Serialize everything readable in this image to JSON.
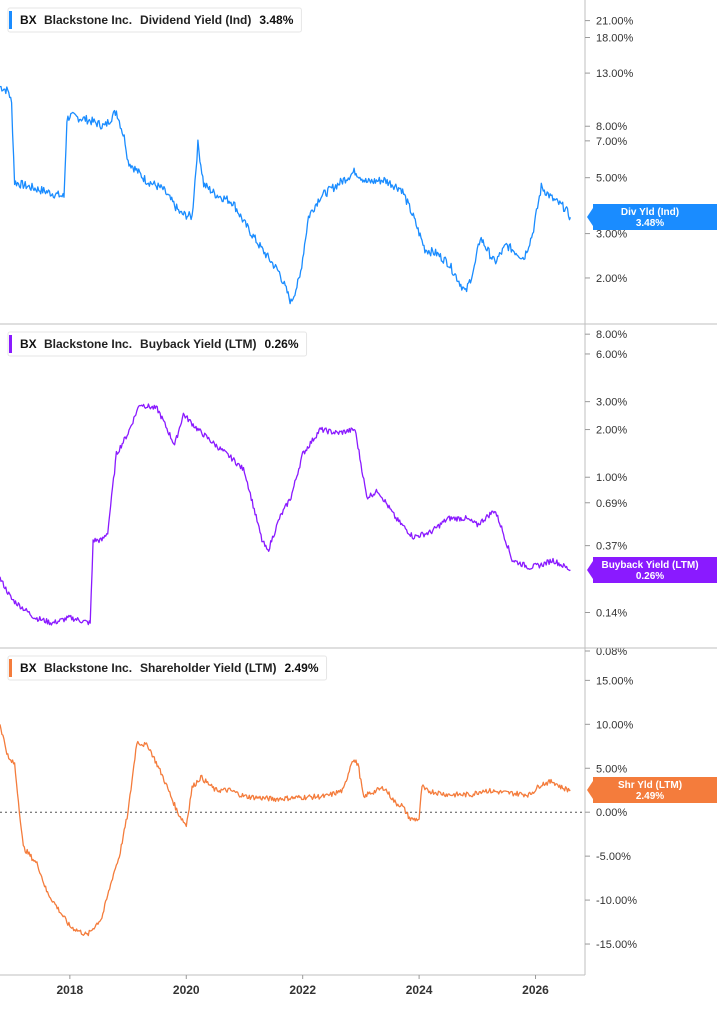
{
  "chart_data": [
    {
      "type": "line",
      "title": "",
      "xlabel": "",
      "ylabel": "",
      "scale": "log",
      "grid": false,
      "legend_placement": "top-left",
      "legend": {
        "ticker": "BX",
        "company": "Blackstone Inc.",
        "metric": "Dividend Yield (Ind)",
        "value": "3.48%"
      },
      "badge": {
        "line1": "Div Yld (Ind)",
        "line2": "3.48%"
      },
      "color": "#1a8cff",
      "x_ticks": [
        "2018",
        "2020",
        "2022",
        "2024",
        "2026"
      ],
      "y_ticks": [
        "21.00%",
        "18.00%",
        "13.00%",
        "8.00%",
        "7.00%",
        "5.00%",
        "3.00%",
        "2.00%"
      ],
      "ylim": [
        1.4,
        24
      ],
      "series": [
        {
          "x": [
            2016.8,
            2016.95,
            2017.0,
            2017.05,
            2017.3,
            2017.6,
            2017.9,
            2017.95,
            2018.0,
            2018.3,
            2018.6,
            2018.8,
            2018.95,
            2019.0,
            2019.3,
            2019.6,
            2019.9,
            2020.1,
            2020.2,
            2020.3,
            2020.5,
            2020.8,
            2021.0,
            2021.3,
            2021.6,
            2021.8,
            2021.95,
            2022.1,
            2022.3,
            2022.6,
            2022.9,
            2023.1,
            2023.4,
            2023.7,
            2023.9,
            2024.1,
            2024.3,
            2024.5,
            2024.8,
            2024.95,
            2025.05,
            2025.3,
            2025.5,
            2025.8,
            2025.95,
            2026.1,
            2026.3,
            2026.5,
            2026.6
          ],
          "y": [
            11.5,
            11.0,
            9.8,
            4.8,
            4.6,
            4.4,
            4.2,
            8.5,
            8.8,
            8.5,
            8.0,
            9.2,
            7.0,
            5.8,
            4.9,
            4.5,
            3.6,
            3.5,
            6.8,
            4.7,
            4.3,
            4.0,
            3.3,
            2.6,
            2.1,
            1.6,
            2.0,
            3.5,
            4.2,
            4.7,
            5.3,
            4.8,
            4.9,
            4.5,
            3.5,
            2.6,
            2.5,
            2.3,
            1.75,
            2.2,
            2.9,
            2.3,
            2.7,
            2.4,
            3.0,
            4.6,
            4.1,
            3.8,
            3.48
          ]
        }
      ]
    },
    {
      "type": "line",
      "title": "",
      "xlabel": "",
      "ylabel": "",
      "scale": "log",
      "grid": false,
      "legend_placement": "top-left",
      "legend": {
        "ticker": "BX",
        "company": "Blackstone Inc.",
        "metric": "Buyback Yield (LTM)",
        "value": "0.26%"
      },
      "badge": {
        "line1": "Buyback Yield (LTM)",
        "line2": "0.26%"
      },
      "color": "#8a1aff",
      "x_ticks": [
        "2018",
        "2020",
        "2022",
        "2024",
        "2026"
      ],
      "y_ticks": [
        "8.00%",
        "6.00%",
        "3.00%",
        "2.00%",
        "1.00%",
        "0.69%",
        "0.37%",
        "0.14%",
        "0.08%"
      ],
      "ylim": [
        0.08,
        8.5
      ],
      "series": [
        {
          "x": [
            2016.8,
            2017.0,
            2017.4,
            2017.7,
            2018.0,
            2018.35,
            2018.4,
            2018.55,
            2018.65,
            2018.8,
            2019.0,
            2019.2,
            2019.5,
            2019.55,
            2019.8,
            2019.95,
            2020.2,
            2020.5,
            2020.8,
            2021.0,
            2021.3,
            2021.4,
            2021.6,
            2021.8,
            2022.0,
            2022.3,
            2022.6,
            2022.9,
            2023.1,
            2023.3,
            2023.6,
            2023.9,
            2024.2,
            2024.5,
            2024.8,
            2025.0,
            2025.3,
            2025.4,
            2025.6,
            2025.9,
            2026.1,
            2026.3,
            2026.6
          ],
          "y": [
            0.23,
            0.17,
            0.13,
            0.12,
            0.13,
            0.12,
            0.4,
            0.4,
            0.45,
            1.4,
            1.9,
            2.9,
            2.7,
            2.5,
            1.6,
            2.5,
            2.0,
            1.6,
            1.3,
            1.1,
            0.4,
            0.34,
            0.55,
            0.75,
            1.4,
            2.0,
            1.9,
            2.0,
            0.75,
            0.82,
            0.55,
            0.42,
            0.45,
            0.55,
            0.55,
            0.5,
            0.62,
            0.5,
            0.3,
            0.27,
            0.28,
            0.3,
            0.26
          ]
        }
      ]
    },
    {
      "type": "line",
      "title": "",
      "xlabel": "",
      "ylabel": "",
      "scale": "linear",
      "grid": false,
      "legend_placement": "top-left",
      "legend": {
        "ticker": "BX",
        "company": "Blackstone Inc.",
        "metric": "Shareholder Yield (LTM)",
        "value": "2.49%"
      },
      "badge": {
        "line1": "Shr Yld (LTM)",
        "line2": "2.49%"
      },
      "color": "#f47c3c",
      "zero_line": true,
      "x_ticks": [
        "2018",
        "2020",
        "2022",
        "2024",
        "2026"
      ],
      "y_ticks": [
        "15.00%",
        "10.00%",
        "5.00%",
        "0.00%",
        "-5.00%",
        "-10.00%",
        "-15.00%"
      ],
      "ylim": [
        -17.5,
        18
      ],
      "series": [
        {
          "x": [
            2016.8,
            2016.95,
            2017.05,
            2017.2,
            2017.45,
            2017.6,
            2017.8,
            2018.0,
            2018.3,
            2018.55,
            2018.75,
            2018.85,
            2019.0,
            2019.15,
            2019.35,
            2019.6,
            2019.85,
            2020.0,
            2020.1,
            2020.25,
            2020.5,
            2020.75,
            2021.0,
            2021.5,
            2022.0,
            2022.4,
            2022.7,
            2022.85,
            2022.95,
            2023.05,
            2023.1,
            2023.4,
            2023.6,
            2023.7,
            2023.85,
            2024.0,
            2024.05,
            2024.1,
            2024.5,
            2024.9,
            2025.1,
            2025.5,
            2025.9,
            2026.1,
            2026.3,
            2026.45,
            2026.6
          ],
          "y": [
            10.0,
            6.0,
            5.5,
            -4.0,
            -6.0,
            -9.0,
            -11.0,
            -13.0,
            -14.0,
            -12.0,
            -7.0,
            -5.0,
            0.0,
            8.0,
            7.5,
            4.0,
            0.0,
            -1.5,
            2.8,
            4.0,
            2.5,
            2.5,
            1.8,
            1.5,
            1.7,
            1.8,
            2.5,
            6.0,
            5.5,
            1.5,
            2.0,
            2.8,
            1.0,
            0.8,
            -0.8,
            -0.8,
            3.0,
            2.5,
            2.0,
            2.0,
            2.5,
            2.2,
            2.0,
            3.2,
            3.5,
            2.8,
            2.49
          ]
        }
      ]
    }
  ]
}
